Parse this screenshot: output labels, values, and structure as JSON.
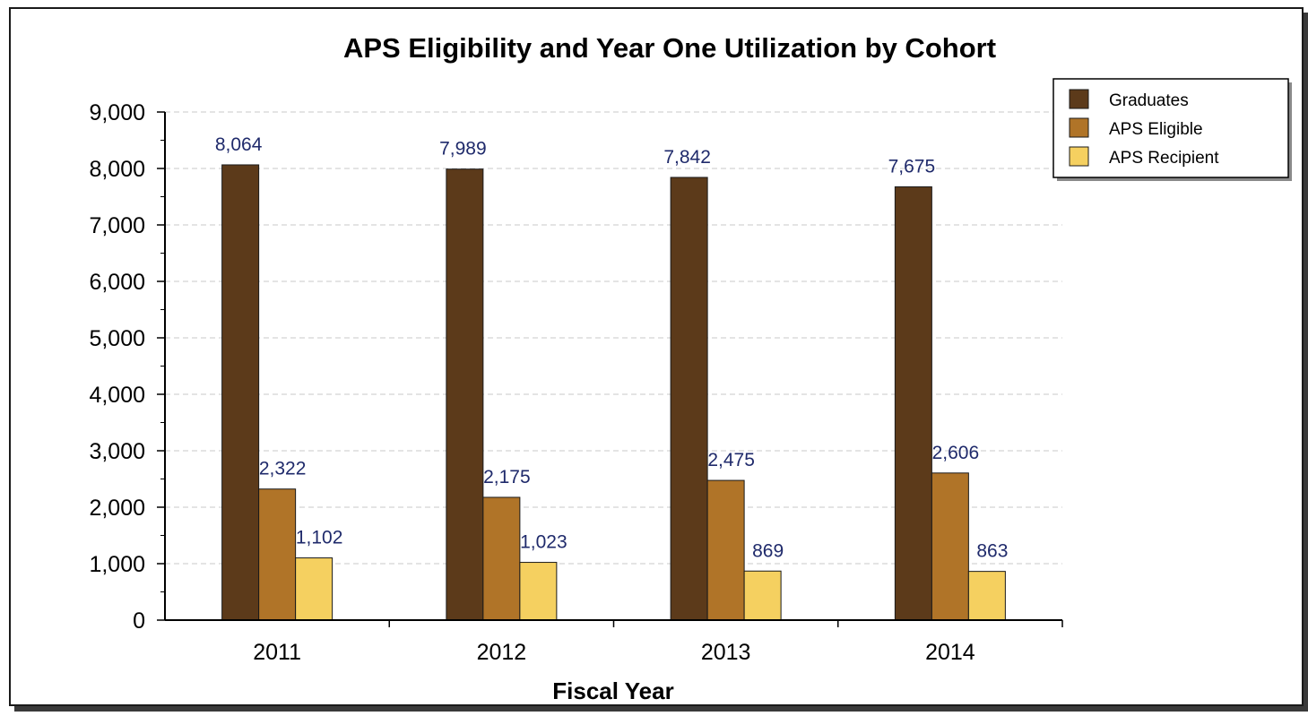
{
  "chart_data": {
    "type": "bar",
    "title": "APS Eligibility and Year One Utilization by Cohort",
    "xlabel": "Fiscal Year",
    "ylabel": "",
    "categories": [
      "2011",
      "2012",
      "2013",
      "2014"
    ],
    "series": [
      {
        "name": "Graduates",
        "values": [
          8064,
          7989,
          7842,
          7675
        ],
        "labels": [
          "8,064",
          "7,989",
          "7,842",
          "7,675"
        ],
        "color": "#5c3a1a"
      },
      {
        "name": "APS Eligible",
        "values": [
          2322,
          2175,
          2475,
          2606
        ],
        "labels": [
          "2,322",
          "2,175",
          "2,475",
          "2,606"
        ],
        "color": "#b07428"
      },
      {
        "name": "APS Recipient",
        "values": [
          1102,
          1023,
          869,
          863
        ],
        "labels": [
          "1,102",
          "1,023",
          "869",
          "863"
        ],
        "color": "#f5d060"
      }
    ],
    "ylim": [
      0,
      9000
    ],
    "yticks": [
      0,
      1000,
      2000,
      3000,
      4000,
      5000,
      6000,
      7000,
      8000,
      9000
    ],
    "ytick_labels": [
      "0",
      "1,000",
      "2,000",
      "3,000",
      "4,000",
      "5,000",
      "6,000",
      "7,000",
      "8,000",
      "9,000"
    ],
    "grid": true,
    "legend_position": "top-right"
  }
}
